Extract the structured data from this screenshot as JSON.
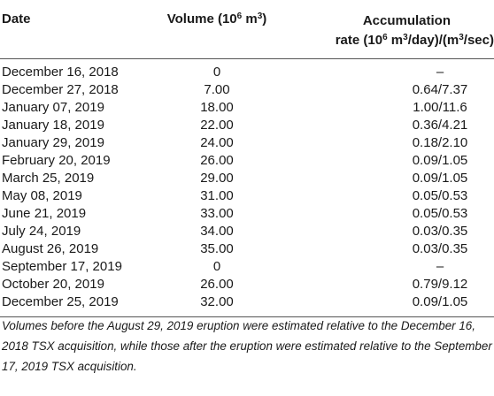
{
  "table": {
    "headers": {
      "date": "Date",
      "volume_prefix": "Volume (10",
      "volume_sup": "6",
      "volume_mid": " m",
      "volume_sup2": "3",
      "volume_suffix": ")",
      "rate_line1": "Accumulation",
      "rate_line2_prefix": "rate (10",
      "rate_line2_sup": "6",
      "rate_line2_mid": " m",
      "rate_line2_sup2": "3",
      "rate_line2_mid2": "/day)/(m",
      "rate_line2_sup3": "3",
      "rate_line2_suffix": "/sec)"
    },
    "rows": [
      {
        "date": "December 16, 2018",
        "volume": "0",
        "rate": "–"
      },
      {
        "date": "December 27, 2018",
        "volume": "7.00",
        "rate": "0.64/7.37"
      },
      {
        "date": "January 07, 2019",
        "volume": "18.00",
        "rate": "1.00/11.6"
      },
      {
        "date": "January 18, 2019",
        "volume": "22.00",
        "rate": "0.36/4.21"
      },
      {
        "date": "January 29, 2019",
        "volume": "24.00",
        "rate": "0.18/2.10"
      },
      {
        "date": "February 20, 2019",
        "volume": "26.00",
        "rate": "0.09/1.05"
      },
      {
        "date": "March 25, 2019",
        "volume": "29.00",
        "rate": "0.09/1.05"
      },
      {
        "date": "May 08, 2019",
        "volume": "31.00",
        "rate": "0.05/0.53"
      },
      {
        "date": "June 21, 2019",
        "volume": "33.00",
        "rate": "0.05/0.53"
      },
      {
        "date": "July 24, 2019",
        "volume": "34.00",
        "rate": "0.03/0.35"
      },
      {
        "date": "August 26, 2019",
        "volume": "35.00",
        "rate": "0.03/0.35"
      },
      {
        "date": "September 17, 2019",
        "volume": "0",
        "rate": "–"
      },
      {
        "date": "October 20, 2019",
        "volume": "26.00",
        "rate": "0.79/9.12"
      },
      {
        "date": "December 25, 2019",
        "volume": "32.00",
        "rate": "0.09/1.05"
      }
    ],
    "footnote": "Volumes before the August 29, 2019 eruption were estimated relative to the December 16, 2018 TSX acquisition, while those after the eruption were estimated relative to the September 17, 2019 TSX acquisition."
  }
}
